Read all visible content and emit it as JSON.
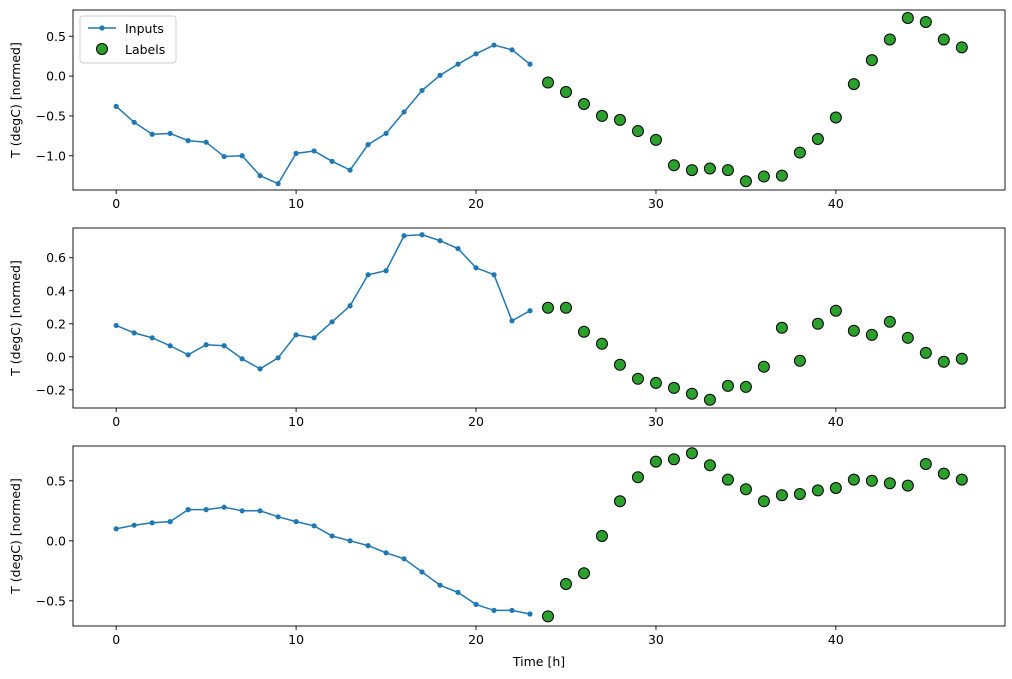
{
  "chart_data": [
    {
      "type": "line+scatter",
      "ylabel": "T (degC) [normed]",
      "xlabel": "",
      "xlim": [
        -2.4,
        49.4
      ],
      "ylim": [
        -1.43,
        0.83
      ],
      "xticks": [
        0,
        10,
        20,
        30,
        40
      ],
      "yticks": [
        0.5,
        0.0,
        -0.5,
        -1.0
      ],
      "ytick_labels": [
        "0.5",
        "0.0",
        "−0.5",
        "−1.0"
      ],
      "legend": {
        "placement": "top-left",
        "entries": [
          "Inputs",
          "Labels"
        ]
      },
      "series": [
        {
          "name": "Inputs",
          "style": "line-markers",
          "color": "#1f77b4",
          "x": [
            0,
            1,
            2,
            3,
            4,
            5,
            6,
            7,
            8,
            9,
            10,
            11,
            12,
            13,
            14,
            15,
            16,
            17,
            18,
            19,
            20,
            21,
            22,
            23
          ],
          "y": [
            -0.38,
            -0.58,
            -0.73,
            -0.72,
            -0.81,
            -0.83,
            -1.01,
            -1.0,
            -1.25,
            -1.35,
            -0.97,
            -0.94,
            -1.07,
            -1.18,
            -0.86,
            -0.72,
            -0.45,
            -0.18,
            0.01,
            0.15,
            0.28,
            0.39,
            0.33,
            0.15
          ]
        },
        {
          "name": "Labels",
          "style": "scatter",
          "color": "#2ca02c",
          "edgecolor": "#000000",
          "x": [
            24,
            25,
            26,
            27,
            28,
            29,
            30,
            31,
            32,
            33,
            34,
            35,
            36,
            37,
            38,
            39,
            40,
            41,
            42,
            43,
            44,
            45,
            46,
            47
          ],
          "y": [
            -0.08,
            -0.2,
            -0.35,
            -0.5,
            -0.55,
            -0.69,
            -0.8,
            -1.12,
            -1.18,
            -1.16,
            -1.18,
            -1.32,
            -1.26,
            -1.25,
            -0.96,
            -0.79,
            -0.52,
            -0.1,
            0.2,
            0.46,
            0.73,
            0.68,
            0.46,
            0.36
          ]
        }
      ]
    },
    {
      "type": "line+scatter",
      "ylabel": "T (degC) [normed]",
      "xlabel": "",
      "xlim": [
        -2.4,
        49.4
      ],
      "ylim": [
        -0.31,
        0.78
      ],
      "xticks": [
        0,
        10,
        20,
        30,
        40
      ],
      "yticks": [
        0.6,
        0.4,
        0.2,
        0.0,
        -0.2
      ],
      "ytick_labels": [
        "0.6",
        "0.4",
        "0.2",
        "0.0",
        "−0.2"
      ],
      "series": [
        {
          "name": "Inputs",
          "style": "line-markers",
          "color": "#1f77b4",
          "x": [
            0,
            1,
            2,
            3,
            4,
            5,
            6,
            7,
            8,
            9,
            10,
            11,
            12,
            13,
            14,
            15,
            16,
            17,
            18,
            19,
            20,
            21,
            22,
            23
          ],
          "y": [
            0.19,
            0.145,
            0.115,
            0.067,
            0.012,
            0.073,
            0.067,
            -0.012,
            -0.073,
            -0.006,
            0.133,
            0.115,
            0.212,
            0.309,
            0.497,
            0.521,
            0.733,
            0.739,
            0.703,
            0.655,
            0.539,
            0.497,
            0.218,
            0.279
          ]
        },
        {
          "name": "Labels",
          "style": "scatter",
          "color": "#2ca02c",
          "edgecolor": "#000000",
          "x": [
            24,
            25,
            26,
            27,
            28,
            29,
            30,
            31,
            32,
            33,
            34,
            35,
            36,
            37,
            38,
            39,
            40,
            41,
            42,
            43,
            44,
            45,
            46,
            47
          ],
          "y": [
            0.297,
            0.297,
            0.152,
            0.079,
            -0.048,
            -0.133,
            -0.158,
            -0.188,
            -0.224,
            -0.26,
            -0.176,
            -0.182,
            -0.06,
            0.176,
            -0.024,
            0.2,
            0.279,
            0.158,
            0.133,
            0.212,
            0.115,
            0.024,
            -0.03,
            -0.012
          ]
        }
      ]
    },
    {
      "type": "line+scatter",
      "ylabel": "T (degC) [normed]",
      "xlabel": "Time [h]",
      "xlim": [
        -2.4,
        49.4
      ],
      "ylim": [
        -0.71,
        0.79
      ],
      "xticks": [
        0,
        10,
        20,
        30,
        40
      ],
      "yticks": [
        0.5,
        0.0,
        -0.5
      ],
      "ytick_labels": [
        "0.5",
        "0.0",
        "−0.5"
      ],
      "series": [
        {
          "name": "Inputs",
          "style": "line-markers",
          "color": "#1f77b4",
          "x": [
            0,
            1,
            2,
            3,
            4,
            5,
            6,
            7,
            8,
            9,
            10,
            11,
            12,
            13,
            14,
            15,
            16,
            17,
            18,
            19,
            20,
            21,
            22,
            23
          ],
          "y": [
            0.1,
            0.13,
            0.15,
            0.16,
            0.26,
            0.26,
            0.28,
            0.25,
            0.25,
            0.2,
            0.16,
            0.125,
            0.04,
            0.0,
            -0.04,
            -0.1,
            -0.15,
            -0.26,
            -0.37,
            -0.43,
            -0.53,
            -0.58,
            -0.58,
            -0.61
          ]
        },
        {
          "name": "Labels",
          "style": "scatter",
          "color": "#2ca02c",
          "edgecolor": "#000000",
          "x": [
            24,
            25,
            26,
            27,
            28,
            29,
            30,
            31,
            32,
            33,
            34,
            35,
            36,
            37,
            38,
            39,
            40,
            41,
            42,
            43,
            44,
            45,
            46,
            47
          ],
          "y": [
            -0.63,
            -0.36,
            -0.27,
            0.04,
            0.33,
            0.53,
            0.66,
            0.68,
            0.73,
            0.63,
            0.51,
            0.43,
            0.33,
            0.38,
            0.39,
            0.42,
            0.44,
            0.51,
            0.5,
            0.48,
            0.46,
            0.64,
            0.56,
            0.51
          ]
        }
      ]
    }
  ]
}
